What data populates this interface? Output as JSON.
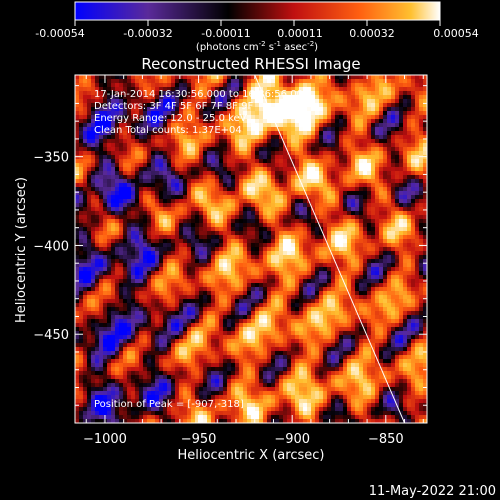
{
  "colorbar": {
    "ticks": [
      "-0.00054",
      "-0.00032",
      "-0.00011",
      "0.00011",
      "0.00032",
      "0.00054"
    ],
    "unit_main": "(photons cm",
    "unit_exp1": "-2",
    "unit_s": " s",
    "unit_exp2": "-1",
    "unit_asec": " asec",
    "unit_exp3": "-2",
    "unit_close": ")"
  },
  "title": "Reconstructed RHESSI Image",
  "annotations": {
    "time": "17-Jan-2014 16:30:56.000 to 16:36:56.000",
    "detectors": "Detectors: 3F 4F 5F 6F 7F 8F 9F",
    "energy": "Energy Range: 12.0 - 25.0 keV",
    "clean": "Clean     Total counts: 1.37E+04",
    "peak": "Position of Peak = [-907,-318]"
  },
  "footer": {
    "date": "11-May-2022 21:00"
  },
  "chart_data": {
    "type": "heatmap",
    "title": "Reconstructed RHESSI Image",
    "xlabel": "Heliocentric X (arcsec)",
    "ylabel": "Heliocentric Y (arcsec)",
    "xlim": [
      -1016,
      -828
    ],
    "ylim": [
      -500,
      -304
    ],
    "xticks": [
      -1000,
      -950,
      -900,
      -850
    ],
    "yticks": [
      -350,
      -400,
      -450
    ],
    "xtick_labels": [
      "−1000",
      "−950",
      "−900",
      "−850"
    ],
    "ytick_labels": [
      "−350",
      "−400",
      "−450"
    ],
    "color_range": [
      -0.00054,
      0.00054
    ],
    "colormap": [
      "#0000ff",
      "#5a2a9a",
      "#000000",
      "#c01010",
      "#ff6010",
      "#ffc030",
      "#ffffff"
    ],
    "limb_line": [
      [
        -920,
        -304
      ],
      [
        -840,
        -500
      ]
    ],
    "peak": [
      -907,
      -318
    ],
    "grid": false
  }
}
